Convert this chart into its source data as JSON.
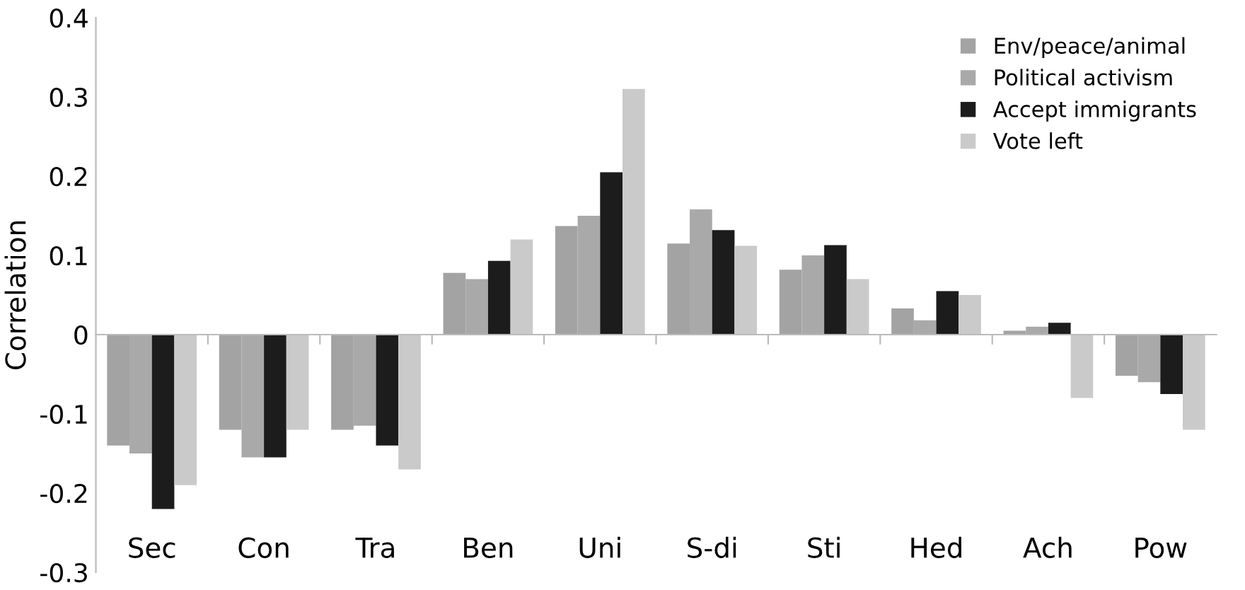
{
  "chart_data": {
    "type": "bar",
    "ylabel": "Correlation",
    "categories": [
      "Sec",
      "Con",
      "Tra",
      "Ben",
      "Uni",
      "S-di",
      "Sti",
      "Hed",
      "Ach",
      "Pow"
    ],
    "series": [
      {
        "name": "Env/peace/animal",
        "color": "#a3a3a3",
        "values": [
          -0.14,
          -0.12,
          -0.12,
          0.078,
          0.137,
          0.115,
          0.082,
          0.033,
          0.005,
          -0.052
        ]
      },
      {
        "name": "Political activism",
        "color": "#a9a9a9",
        "values": [
          -0.15,
          -0.155,
          -0.115,
          0.07,
          0.15,
          0.158,
          0.1,
          0.018,
          0.01,
          -0.06
        ]
      },
      {
        "name": "Accept immigrants",
        "color": "#1c1c1c",
        "values": [
          -0.22,
          -0.155,
          -0.14,
          0.093,
          0.205,
          0.132,
          0.113,
          0.055,
          0.015,
          -0.075
        ]
      },
      {
        "name": "Vote left",
        "color": "#cacaca",
        "values": [
          -0.19,
          -0.12,
          -0.17,
          0.12,
          0.31,
          0.112,
          0.07,
          0.05,
          -0.08,
          -0.12
        ]
      }
    ],
    "ylim": [
      -0.3,
      0.4
    ],
    "yticks": [
      {
        "value": -0.3,
        "label": "-0.3"
      },
      {
        "value": -0.2,
        "label": "-0.2"
      },
      {
        "value": -0.1,
        "label": "-0.1"
      },
      0,
      0.1,
      0.2,
      0.3,
      0.4
    ],
    "legend": "top right"
  }
}
